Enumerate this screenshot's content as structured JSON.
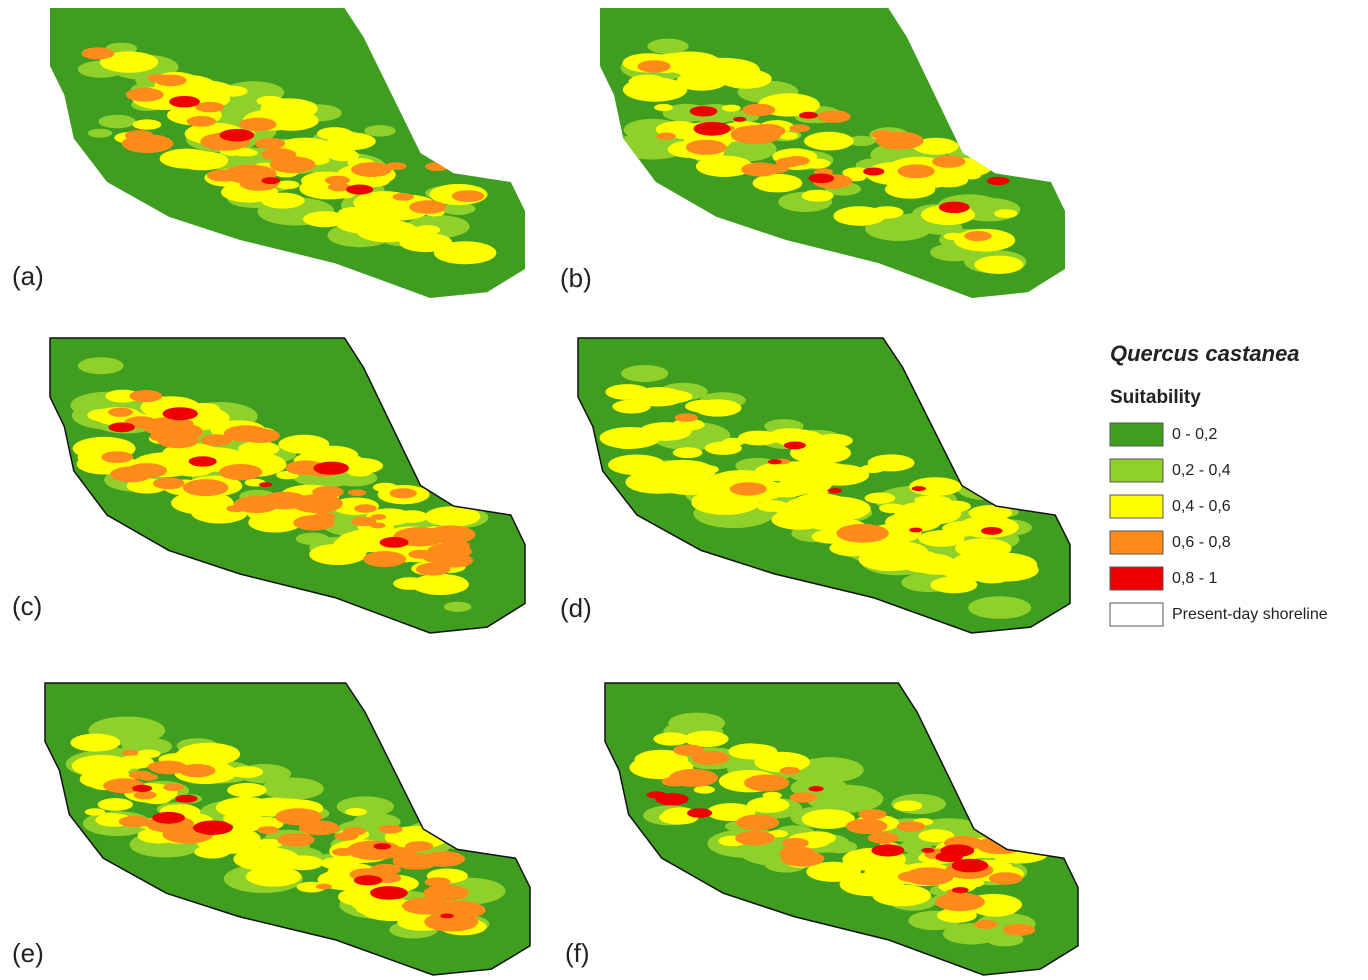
{
  "panels": [
    {
      "label": "(a)"
    },
    {
      "label": "(b)"
    },
    {
      "label": "(c)"
    },
    {
      "label": "(d)"
    },
    {
      "label": "(e)"
    },
    {
      "label": "(f)"
    }
  ],
  "legend": {
    "title": "Quercus castanea",
    "subtitle": "Suitability",
    "items": [
      {
        "label": "0 - 0,2",
        "color": "#3f9e1f"
      },
      {
        "label": "0,2 - 0,4",
        "color": "#8fd12a"
      },
      {
        "label": "0,4 - 0,6",
        "color": "#ffff00"
      },
      {
        "label": "0,6 - 0,8",
        "color": "#ff8c1a"
      },
      {
        "label": "0,8 - 1",
        "color": "#ee0000"
      },
      {
        "label": "Present-day shoreline",
        "color": "#ffffff"
      }
    ]
  }
}
